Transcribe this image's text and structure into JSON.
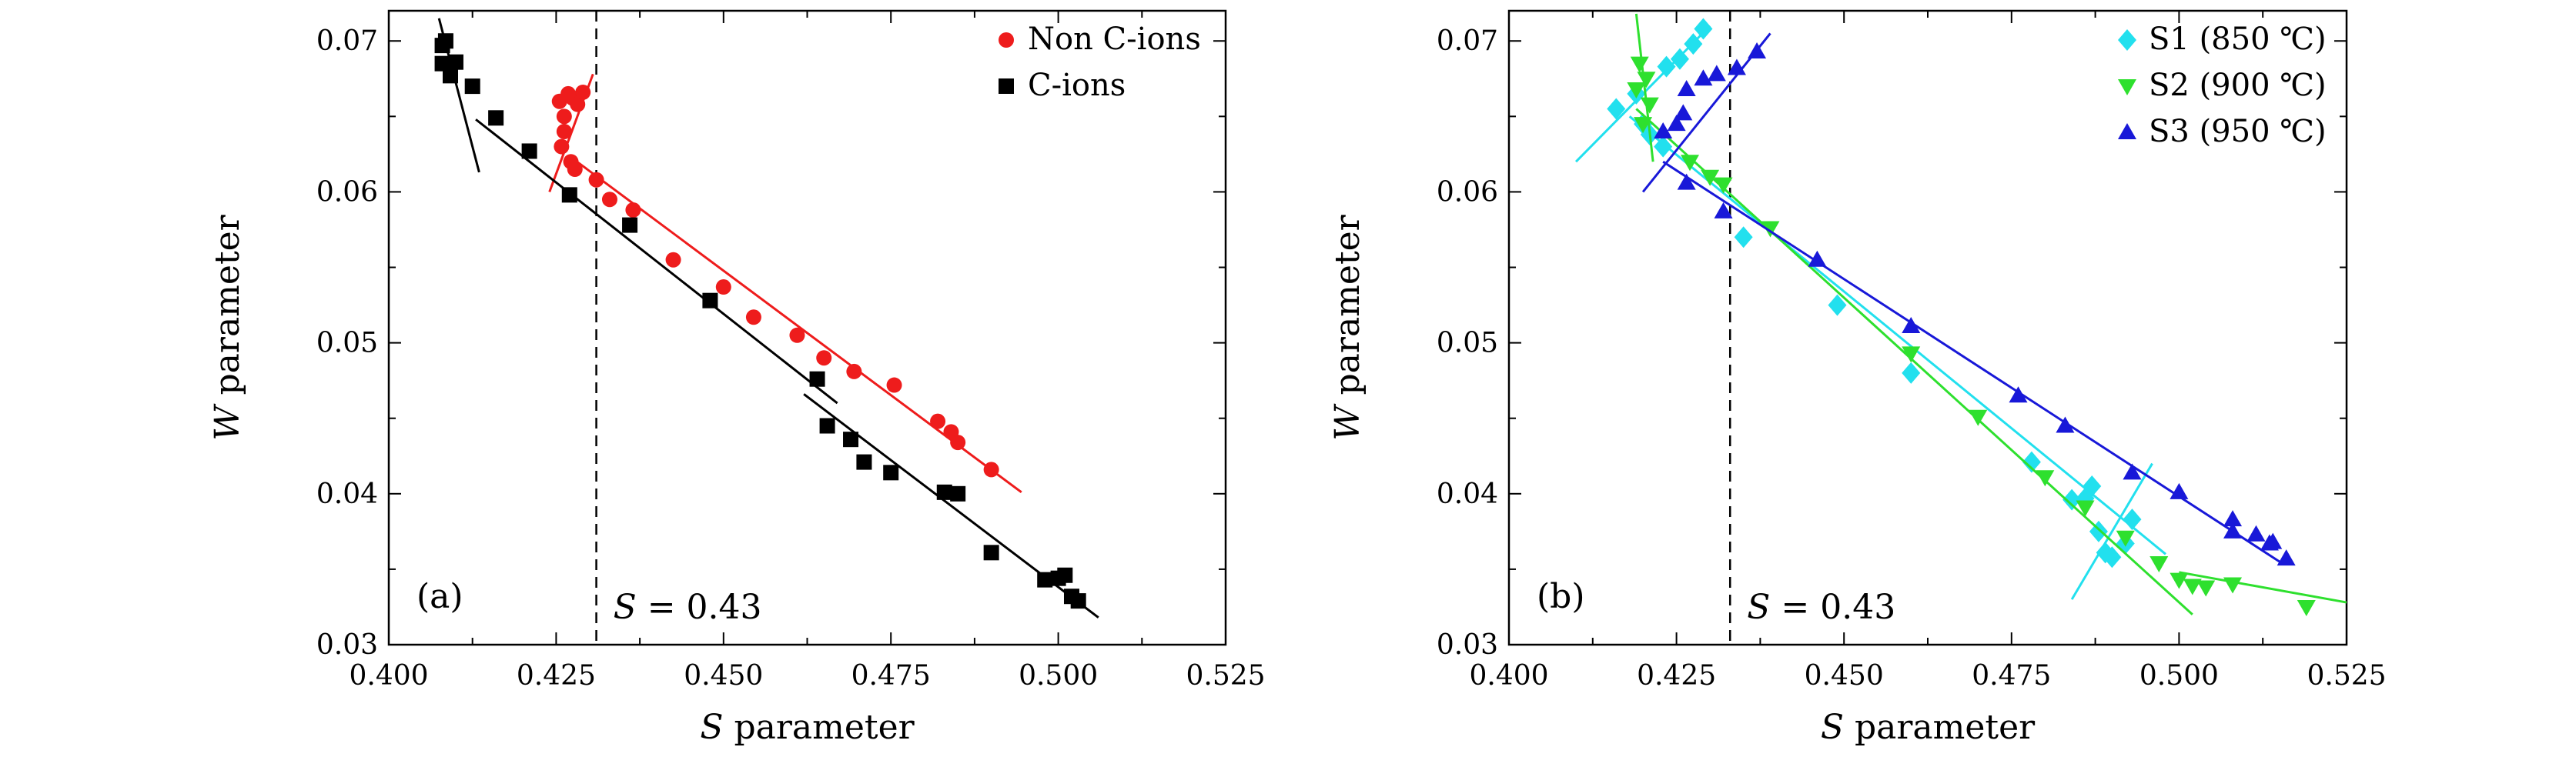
{
  "chart_data": [
    {
      "type": "scatter",
      "panel_label": "(a)",
      "xlabel_italic": "S",
      "xlabel_rest": " parameter",
      "ylabel_italic": "W",
      "ylabel_rest": " parameter",
      "xlim": [
        0.4,
        0.525
      ],
      "ylim": [
        0.03,
        0.072
      ],
      "xticks": [
        "0.400",
        "0.425",
        "0.450",
        "0.475",
        "0.500",
        "0.525"
      ],
      "yticks": [
        "0.03",
        "0.04",
        "0.05",
        "0.06",
        "0.07"
      ],
      "reference_line": {
        "x": 0.431,
        "label_italic": "S",
        "label_rest": " = 0.43"
      },
      "legend_position": "top-right",
      "series": [
        {
          "name": "Non C-ions",
          "marker": "circle",
          "color": "#ee1c1c",
          "points": [
            [
              0.4255,
              0.066
            ],
            [
              0.4262,
              0.065
            ],
            [
              0.4268,
              0.0665
            ],
            [
              0.4275,
              0.0662
            ],
            [
              0.4282,
              0.0658
            ],
            [
              0.429,
              0.0666
            ],
            [
              0.4262,
              0.064
            ],
            [
              0.4258,
              0.063
            ],
            [
              0.4272,
              0.062
            ],
            [
              0.4278,
              0.0615
            ],
            [
              0.431,
              0.0608
            ],
            [
              0.433,
              0.0595
            ],
            [
              0.4365,
              0.0588
            ],
            [
              0.4425,
              0.0555
            ],
            [
              0.45,
              0.0537
            ],
            [
              0.4545,
              0.0517
            ],
            [
              0.461,
              0.0505
            ],
            [
              0.465,
              0.049
            ],
            [
              0.4695,
              0.0481
            ],
            [
              0.4755,
              0.0472
            ],
            [
              0.482,
              0.0448
            ],
            [
              0.484,
              0.0441
            ],
            [
              0.485,
              0.0434
            ],
            [
              0.49,
              0.0416
            ]
          ],
          "fits": [
            [
              [
                0.424,
                0.06
              ],
              [
                0.4305,
                0.0678
              ]
            ],
            [
              [
                0.4275,
                0.0622
              ],
              [
                0.4945,
                0.0401
              ]
            ]
          ]
        },
        {
          "name": "C-ions",
          "marker": "square",
          "color": "#000000",
          "points": [
            [
              0.408,
              0.0697
            ],
            [
              0.4085,
              0.07
            ],
            [
              0.408,
              0.0685
            ],
            [
              0.4092,
              0.0677
            ],
            [
              0.41,
              0.0686
            ],
            [
              0.4125,
              0.067
            ],
            [
              0.416,
              0.0649
            ],
            [
              0.421,
              0.0627
            ],
            [
              0.427,
              0.0598
            ],
            [
              0.436,
              0.0578
            ],
            [
              0.448,
              0.0528
            ],
            [
              0.464,
              0.0476
            ],
            [
              0.4655,
              0.0445
            ],
            [
              0.469,
              0.0436
            ],
            [
              0.471,
              0.0421
            ],
            [
              0.475,
              0.0414
            ],
            [
              0.483,
              0.0401
            ],
            [
              0.485,
              0.04
            ],
            [
              0.49,
              0.0361
            ],
            [
              0.498,
              0.0343
            ],
            [
              0.5,
              0.0344
            ],
            [
              0.501,
              0.0346
            ],
            [
              0.502,
              0.0332
            ],
            [
              0.503,
              0.0329
            ]
          ],
          "fits": [
            [
              [
                0.4075,
                0.0715
              ],
              [
                0.4135,
                0.0613
              ]
            ],
            [
              [
                0.413,
                0.0648
              ],
              [
                0.467,
                0.046
              ]
            ],
            [
              [
                0.462,
                0.0466
              ],
              [
                0.506,
                0.0318
              ]
            ]
          ]
        }
      ]
    },
    {
      "type": "scatter",
      "panel_label": "(b)",
      "xlabel_italic": "S",
      "xlabel_rest": " parameter",
      "ylabel_italic": "W",
      "ylabel_rest": " parameter",
      "xlim": [
        0.4,
        0.525
      ],
      "ylim": [
        0.03,
        0.072
      ],
      "xticks": [
        "0.400",
        "0.425",
        "0.450",
        "0.475",
        "0.500",
        "0.525"
      ],
      "yticks": [
        "0.03",
        "0.04",
        "0.05",
        "0.06",
        "0.07"
      ],
      "reference_line": {
        "x": 0.433,
        "label_italic": "S",
        "label_rest": " = 0.43"
      },
      "legend_position": "top-right",
      "series": [
        {
          "name": "S1 (850 ℃)",
          "marker": "diamond",
          "color": "#22e0ee",
          "points": [
            [
              0.416,
              0.0655
            ],
            [
              0.419,
              0.0665
            ],
            [
              0.42,
              0.0645
            ],
            [
              0.421,
              0.0638
            ],
            [
              0.4235,
              0.0683
            ],
            [
              0.4255,
              0.0688
            ],
            [
              0.4275,
              0.0698
            ],
            [
              0.429,
              0.0708
            ],
            [
              0.423,
              0.063
            ],
            [
              0.435,
              0.057
            ],
            [
              0.449,
              0.0525
            ],
            [
              0.46,
              0.048
            ],
            [
              0.478,
              0.0421
            ],
            [
              0.484,
              0.0396
            ],
            [
              0.487,
              0.0405
            ],
            [
              0.488,
              0.0375
            ],
            [
              0.489,
              0.0361
            ],
            [
              0.49,
              0.0358
            ],
            [
              0.492,
              0.0367
            ],
            [
              0.493,
              0.0383
            ],
            [
              0.486,
              0.0397
            ]
          ],
          "fits": [
            [
              [
                0.41,
                0.062
              ],
              [
                0.43,
                0.071
              ]
            ],
            [
              [
                0.418,
                0.065
              ],
              [
                0.498,
                0.036
              ]
            ],
            [
              [
                0.484,
                0.033
              ],
              [
                0.496,
                0.042
              ]
            ]
          ]
        },
        {
          "name": "S2 (900 ℃)",
          "marker": "triangle-down",
          "color": "#2ee02e",
          "points": [
            [
              0.4195,
              0.0685
            ],
            [
              0.4205,
              0.0675
            ],
            [
              0.419,
              0.0668
            ],
            [
              0.421,
              0.0658
            ],
            [
              0.42,
              0.0645
            ],
            [
              0.427,
              0.062
            ],
            [
              0.43,
              0.061
            ],
            [
              0.432,
              0.0605
            ],
            [
              0.439,
              0.0576
            ],
            [
              0.46,
              0.0493
            ],
            [
              0.47,
              0.0451
            ],
            [
              0.48,
              0.0411
            ],
            [
              0.486,
              0.0391
            ],
            [
              0.492,
              0.0371
            ],
            [
              0.497,
              0.0354
            ],
            [
              0.5,
              0.0343
            ],
            [
              0.502,
              0.0339
            ],
            [
              0.504,
              0.0338
            ],
            [
              0.508,
              0.034
            ],
            [
              0.519,
              0.0325
            ]
          ],
          "fits": [
            [
              [
                0.419,
                0.0718
              ],
              [
                0.4215,
                0.062
              ]
            ],
            [
              [
                0.419,
                0.0655
              ],
              [
                0.502,
                0.032
              ]
            ],
            [
              [
                0.5,
                0.0348
              ],
              [
                0.525,
                0.0328
              ]
            ]
          ]
        },
        {
          "name": "S3 (950 ℃)",
          "marker": "triangle-up",
          "color": "#1818d8",
          "points": [
            [
              0.423,
              0.064
            ],
            [
              0.425,
              0.0645
            ],
            [
              0.426,
              0.0652
            ],
            [
              0.4265,
              0.0668
            ],
            [
              0.429,
              0.0675
            ],
            [
              0.431,
              0.0678
            ],
            [
              0.434,
              0.0682
            ],
            [
              0.437,
              0.0693
            ],
            [
              0.4265,
              0.0606
            ],
            [
              0.432,
              0.0587
            ],
            [
              0.446,
              0.0555
            ],
            [
              0.46,
              0.0511
            ],
            [
              0.476,
              0.0465
            ],
            [
              0.483,
              0.0445
            ],
            [
              0.493,
              0.0414
            ],
            [
              0.5,
              0.0401
            ],
            [
              0.508,
              0.0383
            ],
            [
              0.508,
              0.0375
            ],
            [
              0.5115,
              0.0373
            ],
            [
              0.5135,
              0.0367
            ],
            [
              0.514,
              0.0368
            ],
            [
              0.516,
              0.0357
            ]
          ],
          "fits": [
            [
              [
                0.42,
                0.06
              ],
              [
                0.439,
                0.0705
              ]
            ],
            [
              [
                0.423,
                0.062
              ],
              [
                0.515,
                0.0355
              ]
            ]
          ]
        }
      ]
    }
  ]
}
